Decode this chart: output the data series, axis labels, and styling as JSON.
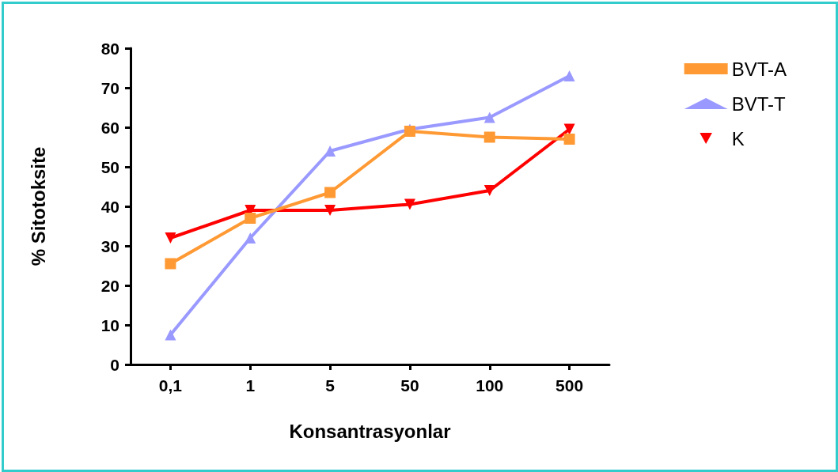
{
  "chart_data": {
    "type": "line",
    "xlabel": "Konsantrasyonlar",
    "ylabel": "% Sitotoksite",
    "categories": [
      "0,1",
      "1",
      "5",
      "50",
      "100",
      "500"
    ],
    "series": [
      {
        "name": "BVT-A",
        "color": "#ff9933",
        "marker": "square",
        "values": [
          25.5,
          37,
          43.5,
          59,
          57.5,
          57
        ]
      },
      {
        "name": "BVT-T",
        "color": "#9999ff",
        "marker": "triangle",
        "values": [
          7.5,
          32,
          54,
          59.5,
          62.5,
          73
        ]
      },
      {
        "name": "K",
        "color": "#ff0000",
        "marker": "triangle-down",
        "values": [
          32,
          39,
          39,
          40.5,
          44,
          59.5
        ]
      }
    ],
    "ylim": [
      0,
      80
    ],
    "yticks": [
      0,
      10,
      20,
      30,
      40,
      50,
      60,
      70,
      80
    ],
    "grid": false,
    "legend": "top right",
    "line_style": "solid"
  }
}
